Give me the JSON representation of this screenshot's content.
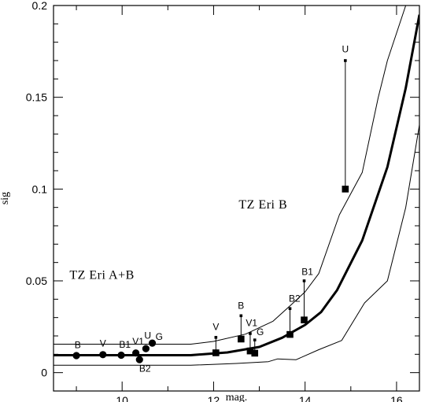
{
  "chart_data": {
    "type": "scatter",
    "title": "",
    "xlabel": "mag.",
    "ylabel": "sig",
    "xlim": [
      8.5,
      16.5
    ],
    "ylim": [
      -0.01,
      0.2
    ],
    "xticks": [
      {
        "v": 10,
        "label": "10"
      },
      {
        "v": 12,
        "label": "12"
      },
      {
        "v": 14,
        "label": "14"
      },
      {
        "v": 16,
        "label": "16"
      }
    ],
    "yticks": [
      {
        "v": 0,
        "label": "0"
      },
      {
        "v": 0.05,
        "label": "0.05"
      },
      {
        "v": 0.1,
        "label": "0.1"
      },
      {
        "v": 0.15,
        "label": "0.15"
      },
      {
        "v": 0.2,
        "label": "0.2"
      }
    ],
    "annotations": [
      {
        "text": "TZ Eri A+B",
        "x": 8.85,
        "y": 0.051
      },
      {
        "text": "TZ Eri B",
        "x": 12.55,
        "y": 0.0895
      }
    ],
    "curves": [
      {
        "style": "thick",
        "points": [
          [
            8.5,
            0.0095
          ],
          [
            11.5,
            0.0095
          ],
          [
            12.3,
            0.011
          ],
          [
            13.0,
            0.014
          ],
          [
            13.5,
            0.019
          ],
          [
            14.0,
            0.026
          ],
          [
            14.35,
            0.033
          ],
          [
            14.7,
            0.045
          ],
          [
            15.25,
            0.072
          ],
          [
            15.8,
            0.112
          ],
          [
            16.2,
            0.155
          ],
          [
            16.5,
            0.195
          ]
        ]
      },
      {
        "style": "thin",
        "points": [
          [
            8.5,
            0.0155
          ],
          [
            11.5,
            0.0155
          ],
          [
            12.0,
            0.017
          ],
          [
            12.7,
            0.021
          ],
          [
            13.3,
            0.028
          ],
          [
            13.7,
            0.037
          ],
          [
            14.0,
            0.044
          ],
          [
            14.3,
            0.054
          ],
          [
            14.75,
            0.086
          ],
          [
            15.25,
            0.109
          ],
          [
            15.6,
            0.15
          ],
          [
            15.8,
            0.17
          ],
          [
            16.2,
            0.2
          ]
        ]
      },
      {
        "style": "thin",
        "points": [
          [
            8.5,
            0.004
          ],
          [
            11.5,
            0.004
          ],
          [
            12.5,
            0.005
          ],
          [
            13.2,
            0.006
          ],
          [
            13.4,
            0.0075
          ],
          [
            13.8,
            0.007
          ],
          [
            14.3,
            0.0125
          ],
          [
            14.8,
            0.0175
          ],
          [
            15.3,
            0.038
          ],
          [
            15.8,
            0.05
          ],
          [
            16.2,
            0.09
          ],
          [
            16.5,
            0.135
          ]
        ]
      }
    ],
    "series": [
      {
        "marker": "circle",
        "points": [
          {
            "label": "B",
            "x": 9.0,
            "y": 0.0093,
            "lx": 0.03,
            "ly": 0.004
          },
          {
            "label": "V",
            "x": 9.58,
            "y": 0.0098,
            "lx": 0.0,
            "ly": 0.0045
          },
          {
            "label": "B1",
            "x": 9.98,
            "y": 0.0095,
            "lx": 0.08,
            "ly": 0.004
          },
          {
            "label": "V1",
            "x": 10.3,
            "y": 0.0107,
            "lx": 0.05,
            "ly": 0.0045
          },
          {
            "label": "B2",
            "x": 10.38,
            "y": 0.0071,
            "lx": 0.12,
            "ly": -0.0065
          },
          {
            "label": "U",
            "x": 10.52,
            "y": 0.0131,
            "lx": 0.04,
            "ly": 0.0055
          },
          {
            "label": "G",
            "x": 10.66,
            "y": 0.0161,
            "lx": 0.15,
            "ly": 0.0018
          }
        ]
      },
      {
        "marker": "square",
        "points": [
          {
            "label": "V",
            "x": 12.05,
            "y": 0.0108,
            "y2": 0.0192,
            "lx": 0.0,
            "ly": 0.0125
          },
          {
            "label": "B",
            "x": 12.6,
            "y": 0.0183,
            "y2": 0.031,
            "lx": 0.0,
            "ly": 0.0165
          },
          {
            "label": "V1",
            "x": 12.8,
            "y": 0.0118,
            "y2": 0.0213,
            "lx": 0.03,
            "ly": 0.0135
          },
          {
            "label": "G",
            "x": 12.9,
            "y": 0.0106,
            "y2": 0.0178,
            "lx": 0.12,
            "ly": 0.0098
          },
          {
            "label": "B2",
            "x": 13.67,
            "y": 0.0208,
            "y2": 0.0349,
            "lx": 0.1,
            "ly": 0.0178
          },
          {
            "label": "B1",
            "x": 13.98,
            "y": 0.0287,
            "y2": 0.05,
            "lx": 0.07,
            "ly": 0.0245
          },
          {
            "label": "U",
            "x": 14.88,
            "y": 0.1,
            "y2": 0.17,
            "lx": 0.0,
            "ly": 0.0745
          }
        ]
      }
    ]
  }
}
